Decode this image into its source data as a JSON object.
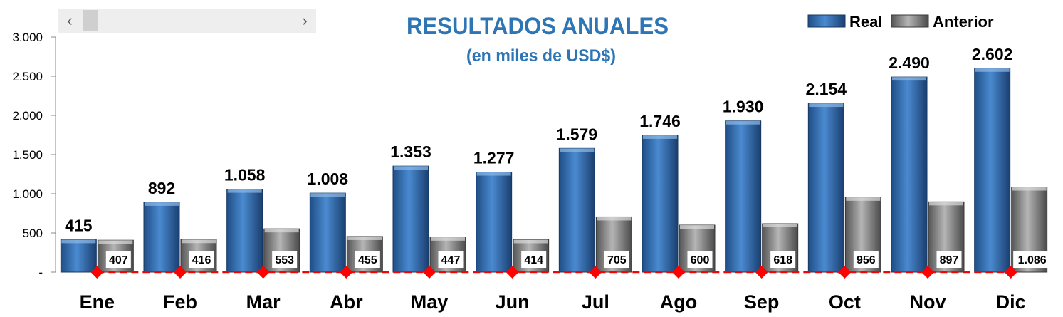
{
  "scrollbar": {
    "left_arrow": "‹",
    "right_arrow": "›"
  },
  "chart_data": {
    "type": "bar",
    "title": "RESULTADOS ANUALES",
    "subtitle": "(en miles de USD$)",
    "categories": [
      "Ene",
      "Feb",
      "Mar",
      "Abr",
      "May",
      "Jun",
      "Jul",
      "Ago",
      "Sep",
      "Oct",
      "Nov",
      "Dic"
    ],
    "series": [
      {
        "name": "Real",
        "values": [
          415,
          892,
          1058,
          1008,
          1353,
          1277,
          1579,
          1746,
          1930,
          2154,
          2490,
          2602
        ],
        "labels": [
          "415",
          "892",
          "1.058",
          "1.008",
          "1.353",
          "1.277",
          "1.579",
          "1.746",
          "1.930",
          "2.154",
          "2.490",
          "2.602"
        ],
        "color": "#2e6aa8"
      },
      {
        "name": "Anterior",
        "values": [
          407,
          416,
          553,
          455,
          447,
          414,
          705,
          600,
          618,
          956,
          897,
          1086
        ],
        "labels": [
          "407",
          "416",
          "553",
          "455",
          "447",
          "414",
          "705",
          "600",
          "618",
          "956",
          "897",
          "1.086"
        ],
        "color": "#8a8a8a"
      }
    ],
    "marker_values": [
      0,
      0,
      0,
      0,
      0,
      0,
      0,
      0,
      0,
      0,
      0,
      0
    ],
    "ylim": [
      0,
      3000
    ],
    "yticks": [
      0,
      500,
      1000,
      1500,
      2000,
      2500,
      3000
    ],
    "ytick_labels": [
      "-",
      "500",
      "1.000",
      "1.500",
      "2.000",
      "2.500",
      "3.000"
    ],
    "legend_position": "top-right",
    "grid": false,
    "colors": {
      "title": "#2e75b6",
      "marker": "#ff0000"
    }
  }
}
